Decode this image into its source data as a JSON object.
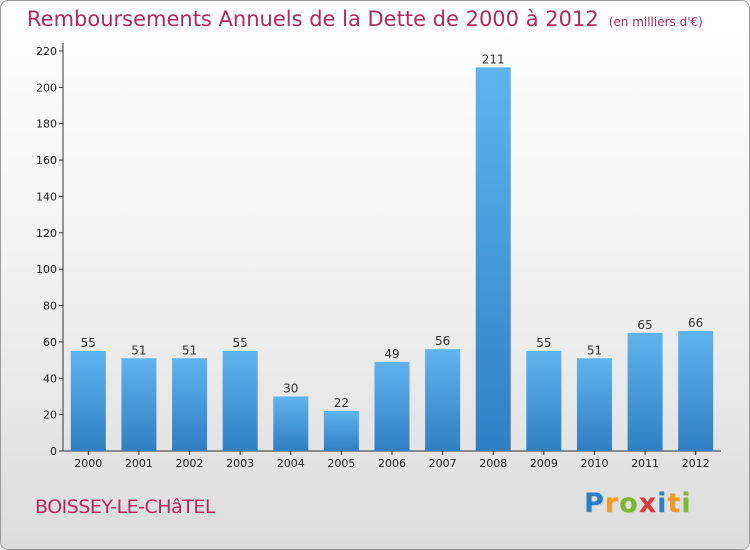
{
  "title": "Remboursements Annuels de la Dette de 2000 à 2012",
  "unit": "(en milliers d'€)",
  "commune": "BOISSEY-LE-CHâTEL",
  "logo": {
    "letters": [
      "P",
      "r",
      "o",
      "x",
      "i",
      "t",
      "i"
    ],
    "colors": [
      "#2a7fc8",
      "#f39a1e",
      "#7cb82f",
      "#d93a3a",
      "#2a7fc8",
      "#f39a1e",
      "#7cb82f"
    ]
  },
  "chart_data": {
    "type": "bar",
    "categories": [
      "2000",
      "2001",
      "2002",
      "2003",
      "2004",
      "2005",
      "2006",
      "2007",
      "2008",
      "2009",
      "2010",
      "2011",
      "2012"
    ],
    "values": [
      55,
      51,
      51,
      55,
      30,
      22,
      49,
      56,
      211,
      55,
      51,
      65,
      66
    ],
    "ylim": [
      0,
      220
    ],
    "yticks": [
      0,
      20,
      40,
      60,
      80,
      100,
      120,
      140,
      160,
      180,
      200,
      220
    ],
    "grid": false,
    "bar_color": "#4a9fe0",
    "title_color": "#b5285d"
  }
}
